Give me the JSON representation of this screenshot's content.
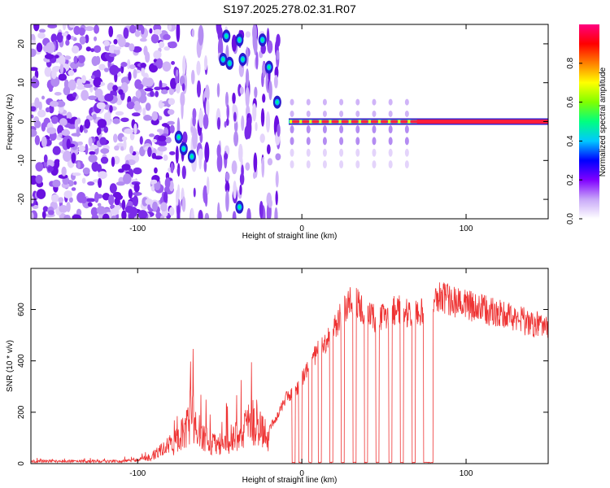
{
  "title": "S197.2025.278.02.31.R07",
  "chart_data": [
    {
      "type": "heatmap",
      "xlabel": "Height of straight line (km)",
      "ylabel": "Frequency (Hz)",
      "xlim": [
        -165,
        150
      ],
      "ylim": [
        -25,
        25
      ],
      "xticks": [
        -100,
        0,
        100
      ],
      "xtick_labels": [
        "-100",
        "0",
        "100"
      ],
      "yticks": [
        -20,
        -10,
        0,
        10,
        20
      ],
      "ytick_labels": [
        "-20",
        "-10",
        "0",
        "10",
        "20"
      ],
      "colorbar": {
        "label": "Normalized spectral amplitude",
        "range": [
          0,
          1
        ],
        "ticks": [
          0.0,
          0.2,
          0.4,
          0.6,
          0.8
        ],
        "tick_labels": [
          "0.0",
          "0.2",
          "0.4",
          "0.6",
          "0.8"
        ],
        "colors": [
          "#ffffff",
          "#c8a8f8",
          "#8000ff",
          "#0000ff",
          "#00c8ff",
          "#00ff80",
          "#80ff00",
          "#ffff00",
          "#ff8000",
          "#ff0000",
          "#ff0080"
        ]
      },
      "features": {
        "noise_region_km": [
          -165,
          -78
        ],
        "transition_region_km": [
          -78,
          -12
        ],
        "carrier_line_freq_hz": 0,
        "carrier_start_km": -8,
        "strong_line_start_km": 70,
        "line_end_km": 150
      }
    },
    {
      "type": "line",
      "xlabel": "Height of straight line (km)",
      "ylabel": "SNR (10 * v/v)",
      "xlim": [
        -165,
        150
      ],
      "ylim": [
        0,
        760
      ],
      "xticks": [
        -100,
        0,
        100
      ],
      "xtick_labels": [
        "-100",
        "0",
        "100"
      ],
      "yticks": [
        0,
        200,
        400,
        600
      ],
      "ytick_labels": [
        "0",
        "200",
        "400",
        "600"
      ],
      "series_color": "#ee3333",
      "envelope": {
        "x": [
          -165,
          -110,
          -95,
          -85,
          -75,
          -68,
          -62,
          -55,
          -48,
          -40,
          -35,
          -28,
          -25,
          -20,
          -15,
          -10,
          -5,
          0,
          5,
          10,
          15,
          20,
          25,
          30,
          35,
          40,
          45,
          50,
          55,
          60,
          65,
          70,
          75,
          80,
          85,
          90,
          100,
          110,
          120,
          130,
          140,
          150
        ],
        "y": [
          15,
          15,
          30,
          80,
          150,
          300,
          200,
          120,
          130,
          170,
          220,
          260,
          200,
          150,
          200,
          280,
          300,
          360,
          430,
          480,
          520,
          580,
          650,
          700,
          680,
          640,
          620,
          630,
          650,
          660,
          640,
          640,
          670,
          700,
          710,
          700,
          680,
          660,
          640,
          620,
          600,
          580
        ]
      },
      "dropouts_km": [
        [
          -6,
          -4
        ],
        [
          -2,
          0
        ],
        [
          4,
          6
        ],
        [
          10,
          12
        ],
        [
          17,
          19
        ],
        [
          24,
          26
        ],
        [
          31,
          33
        ],
        [
          38,
          40
        ],
        [
          45,
          47
        ],
        [
          53,
          55
        ],
        [
          60,
          62
        ],
        [
          67,
          69
        ],
        [
          74,
          80
        ]
      ],
      "dropout_floor": 3
    }
  ]
}
